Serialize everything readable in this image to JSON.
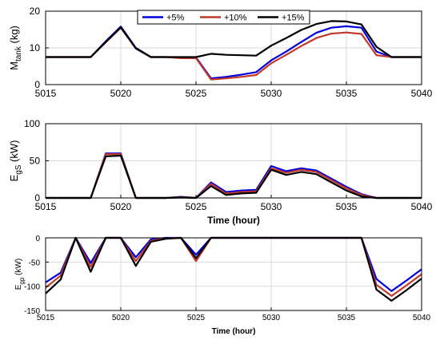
{
  "figure": {
    "legend": [
      "+5%",
      "+10%",
      "+15%"
    ],
    "colors": {
      "+5%": "#0000dd",
      "+10%": "#c0392b",
      "+15%": "#000000"
    }
  },
  "chart_data": [
    {
      "type": "line",
      "ylabel_main": "M",
      "ylabel_sub": "tank",
      "ylabel_unit": " (kg)",
      "xlabel": "",
      "xlim": [
        5015,
        5040
      ],
      "ylim": [
        0,
        20
      ],
      "xticks": [
        5015,
        5020,
        5025,
        5030,
        5035,
        5040
      ],
      "yticks": [
        0,
        10,
        20
      ],
      "grid": true,
      "legend_position": "top",
      "x": [
        5015,
        5016,
        5017,
        5018,
        5019,
        5020,
        5021,
        5022,
        5023,
        5024,
        5025,
        5026,
        5027,
        5028,
        5029,
        5030,
        5031,
        5032,
        5033,
        5034,
        5035,
        5036,
        5037,
        5038,
        5039,
        5040
      ],
      "series": [
        {
          "name": "+5%",
          "values": [
            7.5,
            7.5,
            7.5,
            7.5,
            11.8,
            15.8,
            10.0,
            7.5,
            7.5,
            7.4,
            7.4,
            1.7,
            2.1,
            2.7,
            3.4,
            6.6,
            9.0,
            11.6,
            14.1,
            15.5,
            15.9,
            15.5,
            9.0,
            7.5,
            7.5,
            7.5
          ]
        },
        {
          "name": "+10%",
          "values": [
            7.5,
            7.5,
            7.5,
            7.5,
            11.5,
            15.5,
            9.8,
            7.5,
            7.5,
            7.2,
            7.2,
            1.4,
            1.7,
            2.1,
            2.6,
            5.8,
            8.1,
            10.5,
            12.7,
            13.9,
            14.2,
            13.8,
            8.0,
            7.5,
            7.5,
            7.5
          ]
        },
        {
          "name": "+15%",
          "values": [
            7.5,
            7.5,
            7.5,
            7.5,
            11.6,
            15.6,
            9.9,
            7.5,
            7.5,
            7.5,
            7.5,
            8.4,
            8.1,
            8.0,
            7.9,
            10.6,
            12.7,
            14.9,
            16.5,
            17.3,
            17.2,
            16.4,
            10.3,
            7.5,
            7.5,
            7.5
          ]
        }
      ]
    },
    {
      "type": "line",
      "ylabel_main": "E",
      "ylabel_sub": "gS",
      "ylabel_unit": " (kW)",
      "xlabel": "Time (hour)",
      "xlim": [
        5015,
        5040
      ],
      "ylim": [
        0,
        100
      ],
      "xticks": [
        5015,
        5020,
        5025,
        5030,
        5035,
        5040
      ],
      "yticks": [
        0,
        50,
        100
      ],
      "grid": true,
      "x": [
        5015,
        5016,
        5017,
        5018,
        5019,
        5020,
        5021,
        5022,
        5023,
        5024,
        5025,
        5026,
        5027,
        5028,
        5029,
        5030,
        5031,
        5032,
        5033,
        5034,
        5035,
        5036,
        5037,
        5038,
        5039,
        5040
      ],
      "series": [
        {
          "name": "+5%",
          "values": [
            0,
            0,
            0,
            0,
            60,
            60,
            0,
            0,
            0,
            1.5,
            0,
            21,
            8,
            10,
            11,
            43,
            36,
            40,
            37,
            26,
            15,
            5,
            0,
            0,
            0,
            0
          ]
        },
        {
          "name": "+10%",
          "values": [
            0,
            0,
            0,
            0,
            59,
            59,
            0,
            0,
            0,
            1,
            0,
            19,
            6,
            8,
            9,
            40,
            34,
            38,
            35,
            24,
            13,
            4,
            0,
            0,
            0,
            0
          ]
        },
        {
          "name": "+15%",
          "values": [
            0,
            0,
            0,
            0,
            56,
            57,
            0,
            0,
            0,
            0.5,
            0,
            16,
            4,
            6,
            7,
            38,
            31,
            35,
            32,
            21,
            10,
            2,
            0,
            0,
            0,
            0
          ]
        }
      ]
    },
    {
      "type": "line",
      "ylabel_main": "E",
      "ylabel_sub": "gp",
      "ylabel_unit": " (kW)",
      "xlabel": "Time (hour)",
      "xlim": [
        5015,
        5040
      ],
      "ylim": [
        -150,
        0
      ],
      "xticks": [
        5015,
        5020,
        5025,
        5030,
        5035,
        5040
      ],
      "yticks": [
        -150,
        -100,
        -50,
        0
      ],
      "grid": true,
      "x": [
        5015,
        5016,
        5017,
        5018,
        5019,
        5020,
        5021,
        5022,
        5023,
        5024,
        5025,
        5026,
        5027,
        5028,
        5029,
        5030,
        5031,
        5032,
        5033,
        5034,
        5035,
        5036,
        5037,
        5038,
        5039,
        5040
      ],
      "series": [
        {
          "name": "+5%",
          "values": [
            -92,
            -72,
            0,
            -52,
            0,
            0,
            -40,
            -3,
            0,
            0,
            -35,
            0,
            0,
            0,
            0,
            0,
            0,
            0,
            0,
            0,
            0,
            0,
            -85,
            -110,
            -88,
            -65
          ]
        },
        {
          "name": "+10%",
          "values": [
            -103,
            -78,
            0,
            -60,
            0,
            0,
            -48,
            -6,
            -1,
            0,
            -48,
            0,
            0,
            0,
            0,
            0,
            0,
            0,
            0,
            0,
            0,
            0,
            -97,
            -120,
            -98,
            -75
          ]
        },
        {
          "name": "+15%",
          "values": [
            -115,
            -86,
            0,
            -70,
            0,
            0,
            -58,
            -8,
            -2,
            0,
            -42,
            0,
            0,
            0,
            0,
            0,
            0,
            0,
            0,
            0,
            0,
            0,
            -107,
            -130,
            -108,
            -84
          ]
        }
      ]
    }
  ]
}
